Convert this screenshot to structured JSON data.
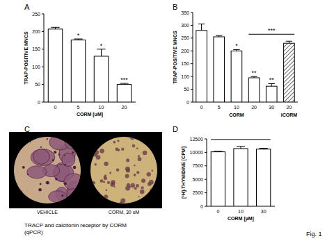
{
  "chart_data": [
    {
      "type": "bar",
      "title": "A",
      "y_label": "TRAP-POSITIVE MNCS",
      "x_label": "CORM [uM]",
      "categories": [
        "0",
        "5",
        "10",
        "20"
      ],
      "values": [
        207,
        176,
        130,
        50
      ],
      "errors": [
        5,
        3,
        20,
        3
      ],
      "annotations": [
        null,
        "*",
        "*",
        "***"
      ],
      "color": "#ffffff",
      "ylim": [
        0,
        250
      ],
      "yticks": [
        0,
        50,
        100,
        150,
        200,
        250
      ],
      "grid": false
    },
    {
      "type": "bar",
      "title": "B",
      "y_label": "TRAP-POSITIVE MNCS",
      "categories": [
        "0",
        "5",
        "10",
        "20",
        "30",
        "20"
      ],
      "x_groups": [
        "CORM",
        "CORM",
        "CORM",
        "CORM",
        "CORM",
        "iCORM"
      ],
      "values": [
        280,
        255,
        200,
        95,
        62,
        230
      ],
      "errors": [
        25,
        5,
        5,
        5,
        10,
        8
      ],
      "annotations": [
        null,
        null,
        "*",
        "**",
        "**",
        null
      ],
      "brackets": [
        {
          "from": 3,
          "to": 5,
          "label": "***"
        }
      ],
      "color": "#ffffff",
      "ylim": [
        0,
        350
      ],
      "yticks": [
        0,
        50,
        100,
        150,
        200,
        250,
        300,
        350
      ],
      "grid": false
    },
    {
      "type": "bar",
      "title": "D",
      "y_label": "[³H]-THYMIDINE [CPM]",
      "x_label": "CORM [µM]",
      "categories": [
        "0",
        "10",
        "30"
      ],
      "values": [
        10100,
        10700,
        10600
      ],
      "errors": [
        100,
        400,
        150
      ],
      "brackets": [
        {
          "from": 0,
          "to": 2
        }
      ],
      "color": "#ffffff",
      "ylim": [
        0,
        12500
      ],
      "yticks": [
        0,
        2500,
        5000,
        7500,
        10000,
        12500
      ],
      "grid": false
    }
  ],
  "images": {
    "title": "C",
    "captions": [
      "VEHICLE",
      "CORM, 30 uM"
    ]
  },
  "notes": [
    "TRACP and calcitonin receptor by CORM",
    "(qPCR)"
  ],
  "figure_label": "Fig. 1"
}
